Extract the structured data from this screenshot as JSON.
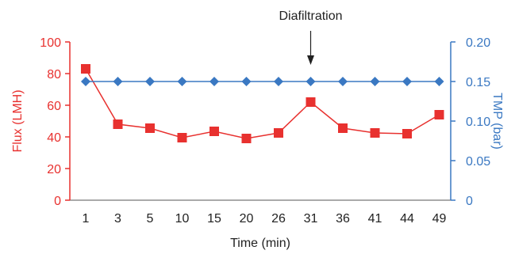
{
  "chart_data": {
    "type": "line",
    "categories": [
      "1",
      "3",
      "5",
      "10",
      "15",
      "20",
      "26",
      "31",
      "36",
      "41",
      "44",
      "49"
    ],
    "xlabel": "Time (min)",
    "series": [
      {
        "name": "Flux (LMH)",
        "axis": "left",
        "marker": "square",
        "color": "#e8312f",
        "values": [
          83,
          48,
          45.5,
          39.5,
          43.5,
          39,
          42.5,
          62,
          45.5,
          42.5,
          42,
          54
        ]
      },
      {
        "name": "TMP (bar)",
        "axis": "right",
        "marker": "diamond",
        "color": "#3a78c2",
        "values": [
          0.15,
          0.15,
          0.15,
          0.15,
          0.15,
          0.15,
          0.15,
          0.15,
          0.15,
          0.15,
          0.15,
          0.15
        ]
      }
    ],
    "y_left": {
      "label": "Flux (LMH)",
      "range": [
        0,
        100
      ],
      "ticks": [
        "0",
        "20",
        "40",
        "60",
        "80",
        "100"
      ],
      "color": "#e8312f"
    },
    "y_right": {
      "label": "TMP (bar)",
      "range": [
        0,
        0.2
      ],
      "ticks": [
        "0",
        "0.05",
        "0.10",
        "0.15",
        "0.20"
      ],
      "color": "#3a78c2"
    },
    "annotation": {
      "text": "Diafiltration",
      "category": "31",
      "arrow": "down"
    },
    "grid": false,
    "legend": "none"
  }
}
